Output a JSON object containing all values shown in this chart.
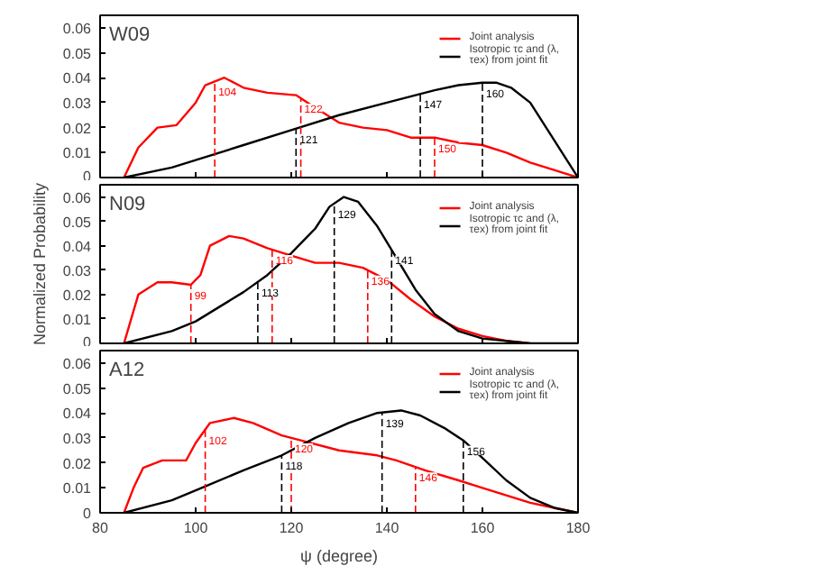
{
  "chart_data": [
    {
      "type": "line",
      "title": "W09",
      "xlim": [
        80,
        180
      ],
      "ylim": [
        0,
        0.065
      ],
      "xticks": [
        80,
        100,
        120,
        140,
        160,
        180
      ],
      "yticks": [
        0,
        0.01,
        0.02,
        0.03,
        0.04,
        0.05,
        0.06
      ],
      "tick_labels": "y",
      "legend": "top right",
      "series": [
        {
          "name": "Joint analysis",
          "color": "#ff0000",
          "x": [
            85,
            88,
            92,
            96,
            100,
            102,
            106,
            110,
            115,
            121,
            125,
            130,
            135,
            140,
            145,
            150,
            155,
            160,
            165,
            170,
            175,
            180
          ],
          "values": [
            0,
            0.012,
            0.02,
            0.021,
            0.03,
            0.037,
            0.04,
            0.036,
            0.034,
            0.033,
            0.028,
            0.022,
            0.02,
            0.019,
            0.016,
            0.016,
            0.014,
            0.013,
            0.01,
            0.006,
            0.003,
            0
          ]
        },
        {
          "name": "Isotropic τc and (λ, τex) from joint fit",
          "color": "#000000",
          "x": [
            85,
            95,
            100,
            110,
            120,
            130,
            140,
            150,
            155,
            160,
            163,
            166,
            170,
            174,
            178,
            180
          ],
          "values": [
            0,
            0.004,
            0.007,
            0.013,
            0.019,
            0.025,
            0.03,
            0.035,
            0.037,
            0.038,
            0.038,
            0.036,
            0.03,
            0.018,
            0.006,
            0
          ]
        }
      ],
      "ref_lines": [
        {
          "axis": "x",
          "value": 104,
          "label": "104",
          "color": "#ff0000",
          "line_style": "dashed"
        },
        {
          "axis": "x",
          "value": 122,
          "label": "122",
          "color": "#ff0000",
          "line_style": "dashed"
        },
        {
          "axis": "x",
          "value": 150,
          "label": "150",
          "color": "#ff0000",
          "line_style": "dashed"
        },
        {
          "axis": "x",
          "value": 121,
          "label": "121",
          "color": "#000000",
          "line_style": "dashed"
        },
        {
          "axis": "x",
          "value": 147,
          "label": "147",
          "color": "#000000",
          "line_style": "dashed"
        },
        {
          "axis": "x",
          "value": 160,
          "label": "160",
          "color": "#000000",
          "line_style": "dashed"
        }
      ]
    },
    {
      "type": "line",
      "title": "N09",
      "ylabel": "Normalized Probability",
      "xlim": [
        80,
        180
      ],
      "ylim": [
        0,
        0.065
      ],
      "xticks": [
        80,
        100,
        120,
        140,
        160,
        180
      ],
      "yticks": [
        0,
        0.01,
        0.02,
        0.03,
        0.04,
        0.05,
        0.06
      ],
      "tick_labels": "y",
      "legend": "top right",
      "series": [
        {
          "name": "Joint analysis",
          "color": "#ff0000",
          "x": [
            85,
            88,
            92,
            95,
            99,
            101,
            103,
            107,
            110,
            115,
            120,
            125,
            130,
            135,
            140,
            145,
            150,
            155,
            160,
            165,
            170
          ],
          "values": [
            0,
            0.02,
            0.025,
            0.025,
            0.024,
            0.028,
            0.04,
            0.044,
            0.043,
            0.039,
            0.036,
            0.033,
            0.033,
            0.031,
            0.026,
            0.018,
            0.011,
            0.006,
            0.003,
            0.001,
            0
          ]
        },
        {
          "name": "Isotropic τc and (λ, τex) from joint fit",
          "color": "#000000",
          "x": [
            85,
            95,
            100,
            105,
            110,
            115,
            120,
            125,
            128,
            131,
            134,
            138,
            142,
            146,
            150,
            155,
            160,
            170,
            180
          ],
          "values": [
            0,
            0.005,
            0.009,
            0.015,
            0.021,
            0.028,
            0.037,
            0.047,
            0.056,
            0.06,
            0.058,
            0.048,
            0.035,
            0.022,
            0.012,
            0.005,
            0.002,
            0,
            0
          ]
        }
      ],
      "ref_lines": [
        {
          "axis": "x",
          "value": 99,
          "label": "99",
          "color": "#ff0000",
          "line_style": "dashed"
        },
        {
          "axis": "x",
          "value": 116,
          "label": "116",
          "color": "#ff0000",
          "line_style": "dashed"
        },
        {
          "axis": "x",
          "value": 136,
          "label": "136",
          "color": "#ff0000",
          "line_style": "dashed"
        },
        {
          "axis": "x",
          "value": 113,
          "label": "113",
          "color": "#000000",
          "line_style": "dashed"
        },
        {
          "axis": "x",
          "value": 129,
          "label": "129",
          "color": "#000000",
          "line_style": "dashed"
        },
        {
          "axis": "x",
          "value": 141,
          "label": "141",
          "color": "#000000",
          "line_style": "dashed"
        }
      ]
    },
    {
      "type": "line",
      "title": "A12",
      "xlabel": "ψ (degree)",
      "xlim": [
        80,
        180
      ],
      "ylim": [
        0,
        0.065
      ],
      "xticks": [
        80,
        100,
        120,
        140,
        160,
        180
      ],
      "yticks": [
        0,
        0.01,
        0.02,
        0.03,
        0.04,
        0.05,
        0.06
      ],
      "legend": "top right",
      "series": [
        {
          "name": "Joint analysis",
          "color": "#ff0000",
          "x": [
            85,
            87,
            89,
            93,
            98,
            100,
            103,
            108,
            112,
            118,
            122,
            130,
            138,
            142,
            148,
            155,
            160,
            165,
            170,
            175,
            180
          ],
          "values": [
            0,
            0.01,
            0.018,
            0.021,
            0.021,
            0.028,
            0.036,
            0.038,
            0.036,
            0.031,
            0.029,
            0.025,
            0.023,
            0.021,
            0.017,
            0.013,
            0.01,
            0.007,
            0.004,
            0.002,
            0
          ]
        },
        {
          "name": "Isotropic τc and (λ, τex) from joint fit",
          "color": "#000000",
          "x": [
            85,
            95,
            100,
            110,
            118,
            125,
            132,
            138,
            143,
            147,
            152,
            156,
            160,
            165,
            170,
            175,
            180
          ],
          "values": [
            0,
            0.005,
            0.009,
            0.017,
            0.023,
            0.03,
            0.036,
            0.04,
            0.041,
            0.039,
            0.034,
            0.029,
            0.022,
            0.013,
            0.006,
            0.002,
            0
          ]
        }
      ],
      "ref_lines": [
        {
          "axis": "x",
          "value": 102,
          "label": "102",
          "color": "#ff0000",
          "line_style": "dashed"
        },
        {
          "axis": "x",
          "value": 120,
          "label": "120",
          "color": "#ff0000",
          "line_style": "dashed"
        },
        {
          "axis": "x",
          "value": 146,
          "label": "146",
          "color": "#ff0000",
          "line_style": "dashed"
        },
        {
          "axis": "x",
          "value": 118,
          "label": "118",
          "color": "#000000",
          "line_style": "dashed"
        },
        {
          "axis": "x",
          "value": 139,
          "label": "139",
          "color": "#000000",
          "line_style": "dashed"
        },
        {
          "axis": "x",
          "value": 156,
          "label": "156",
          "color": "#000000",
          "line_style": "dashed"
        }
      ]
    }
  ]
}
